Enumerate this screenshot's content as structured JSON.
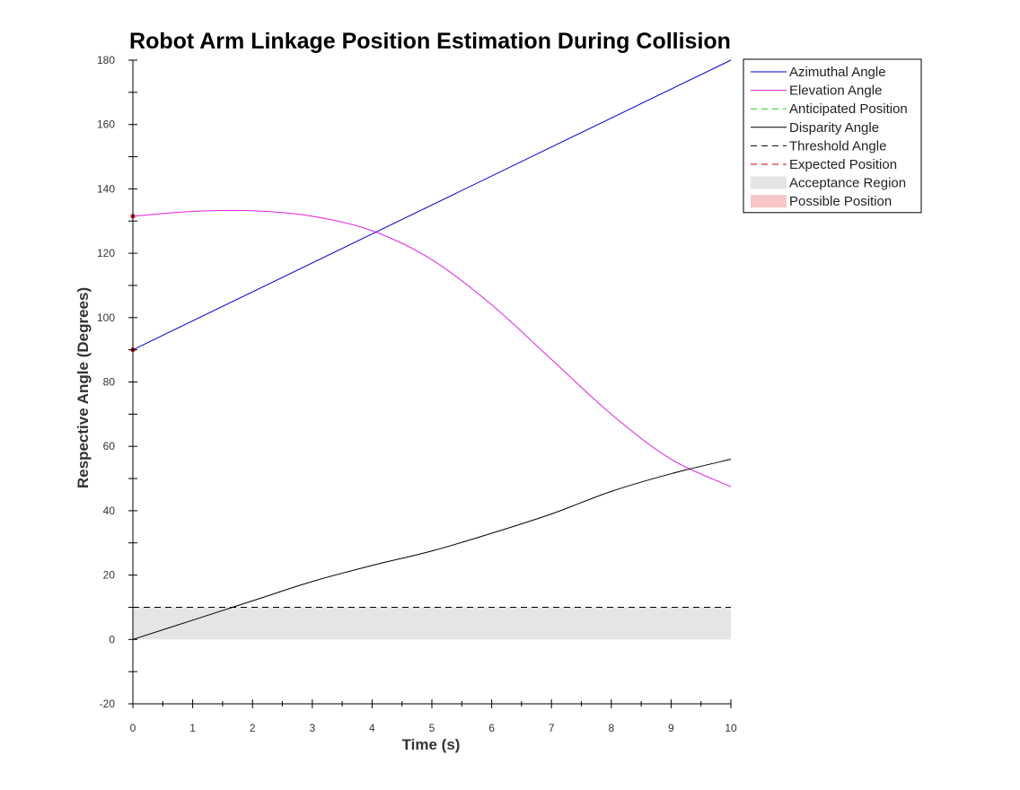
{
  "chart_data": {
    "type": "line",
    "title": "Robot Arm Linkage Position Estimation During Collision",
    "xlabel": "Time (s)",
    "ylabel": "Respective Angle (Degrees)",
    "xlim": [
      0,
      10
    ],
    "ylim": [
      -20,
      180
    ],
    "xticks": [
      0,
      1,
      2,
      3,
      4,
      5,
      6,
      7,
      8,
      9,
      10
    ],
    "yticks": [
      -20,
      0,
      20,
      40,
      60,
      80,
      100,
      120,
      140,
      160,
      180
    ],
    "grid": false,
    "legend_position": "top-right",
    "series": [
      {
        "name": "Azimuthal Angle",
        "color": "#0000cc",
        "style": "solid",
        "x": [
          0,
          10
        ],
        "y": [
          90,
          180
        ]
      },
      {
        "name": "Elevation Angle",
        "color": "#e020e0",
        "style": "solid",
        "x": [
          0,
          1,
          2,
          3,
          4,
          5,
          6,
          7,
          8,
          9,
          10
        ],
        "y": [
          131.5,
          133,
          133.2,
          131.5,
          127,
          118,
          104,
          87,
          70,
          56,
          47.5
        ]
      },
      {
        "name": "Anticipated Position",
        "color": "#22cc22",
        "style": "dashed",
        "x": [
          0,
          0
        ],
        "y": [
          -20,
          180
        ]
      },
      {
        "name": "Disparity Angle",
        "color": "#000000",
        "style": "solid",
        "x": [
          0,
          1,
          2,
          3,
          4,
          5,
          6,
          7,
          8,
          9,
          10
        ],
        "y": [
          0,
          6,
          12,
          18,
          23,
          27.5,
          33,
          39,
          46,
          51.5,
          56
        ]
      },
      {
        "name": "Threshold Angle",
        "color": "#000000",
        "style": "dashed",
        "x": [
          0,
          10
        ],
        "y": [
          10,
          10
        ]
      },
      {
        "name": "Expected Position",
        "color": "#cc0000",
        "style": "dashed",
        "x": [
          0,
          0
        ],
        "y": [
          90,
          131.5
        ]
      },
      {
        "name": "Acceptance Region",
        "color": "#e5e5e5",
        "style": "area",
        "x": [
          0,
          10
        ],
        "y_low": 0,
        "y_high": 10
      },
      {
        "name": "Possible Position",
        "color": "#f7c6c6",
        "style": "area",
        "x": [],
        "y": []
      }
    ]
  }
}
